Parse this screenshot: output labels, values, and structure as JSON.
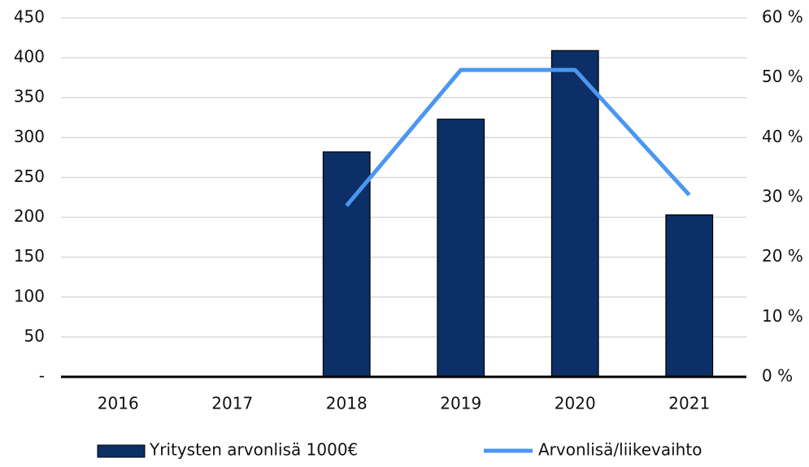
{
  "chart_data": {
    "type": "bar-line",
    "categories": [
      "2016",
      "2017",
      "2018",
      "2019",
      "2020",
      "2021"
    ],
    "series": [
      {
        "name": "Yritysten arvonlisä 1000€",
        "type": "bar",
        "color": "#0b2f66",
        "values": [
          null,
          null,
          282,
          323,
          409,
          203
        ]
      },
      {
        "name": "Arvonlisä/liikevaihto",
        "type": "line",
        "axis": "y2",
        "color": "#4a97f0",
        "values": [
          null,
          null,
          28.6,
          51.3,
          51.3,
          30.4
        ]
      }
    ],
    "ylim": [
      0,
      450
    ],
    "yticks": [
      {
        "value": 0,
        "label": "-"
      },
      50,
      100,
      150,
      200,
      250,
      300,
      350,
      400,
      450
    ],
    "y2lim": [
      0,
      60
    ],
    "y2ticks": [
      {
        "value": 0,
        "label": "0 %"
      },
      {
        "value": 10,
        "label": "10 %"
      },
      {
        "value": 20,
        "label": "20 %"
      },
      {
        "value": 30,
        "label": "30 %"
      },
      {
        "value": 40,
        "label": "40 %"
      },
      {
        "value": 50,
        "label": "50 %"
      },
      {
        "value": 60,
        "label": "60 %"
      }
    ],
    "grid": true,
    "legend": "bottom"
  }
}
